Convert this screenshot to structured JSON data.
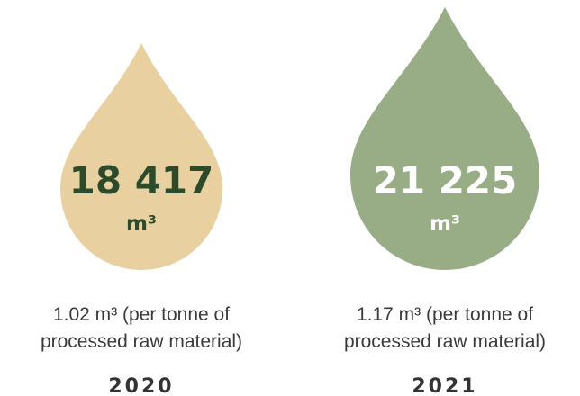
{
  "items": [
    {
      "value": "18 417",
      "unit": "m³",
      "caption": [
        "1.02 m³ (per tonne of",
        "processed raw material)"
      ],
      "year": "2020"
    },
    {
      "value": "21 225",
      "unit": "m³",
      "caption": [
        "1.17 m³ (per tonne of",
        "processed raw material)"
      ],
      "year": "2021"
    }
  ]
}
